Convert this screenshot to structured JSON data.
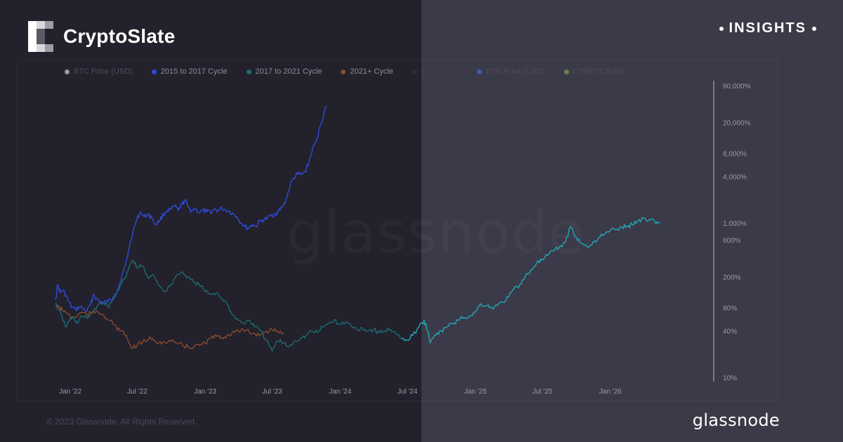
{
  "header": {
    "logo_text": "CryptoSlate",
    "logo_icon": "cryptoslate-pixel-logo-icon",
    "insights_label": "INSIGHTS"
  },
  "legend": {
    "items": [
      {
        "label": "BTC Price (USD)",
        "color": "#ffffff",
        "faded": true
      },
      {
        "label": "2015 to 2017 Cycle",
        "color": "#2f4bd9",
        "faded": false
      },
      {
        "label": "2017 to 2021 Cycle",
        "color": "#1d6b73",
        "faded": false
      },
      {
        "label": "2021+ Cycle",
        "color": "#8a4b2e",
        "faded": false
      },
      {
        "label": "–",
        "color": "#3b3a48",
        "faded": true
      },
      {
        "label": "–",
        "color": "#3b3a48",
        "faded": true
      },
      {
        "label": "BTC Price (USD)",
        "color": "#3b82f6",
        "faded": true
      },
      {
        "label": "LTH/BTC Ratio",
        "color": "#8bc34a",
        "faded": true
      }
    ]
  },
  "watermark": "glassnode",
  "footer": {
    "copyright": "© 2023 Glassnode. All Rights Reserved.",
    "brand": "glassnode"
  },
  "chart_data": {
    "type": "line",
    "y_scale": "log",
    "ylim": [
      10,
      60000
    ],
    "xlim": [
      "2021-11-20",
      "2026-09-30"
    ],
    "x_ticks": [
      {
        "label": "Jan '22",
        "date": "2022-01-01"
      },
      {
        "label": "Jul '22",
        "date": "2022-07-01"
      },
      {
        "label": "Jan '23",
        "date": "2023-01-01"
      },
      {
        "label": "Jul '23",
        "date": "2023-07-01"
      },
      {
        "label": "Jan '24",
        "date": "2024-01-01"
      },
      {
        "label": "Jul '24",
        "date": "2024-07-01"
      },
      {
        "label": "Jan '25",
        "date": "2025-01-01"
      },
      {
        "label": "Jul '25",
        "date": "2025-07-01"
      },
      {
        "label": "Jan '26",
        "date": "2026-01-01"
      }
    ],
    "y_ticks": [
      {
        "label": "60,000%",
        "value": 60000
      },
      {
        "label": "20,000%",
        "value": 20000
      },
      {
        "label": "8,000%",
        "value": 8000
      },
      {
        "label": "4,000%",
        "value": 4000
      },
      {
        "label": "1,000%",
        "value": 1000
      },
      {
        "label": "600%",
        "value": 600
      },
      {
        "label": "200%",
        "value": 200
      },
      {
        "label": "80%",
        "value": 80
      },
      {
        "label": "40%",
        "value": 40
      },
      {
        "label": "10%",
        "value": 10
      }
    ],
    "series": [
      {
        "name": "2015 to 2017 Cycle",
        "color": "#2f4bd9",
        "points": [
          [
            "2021-11-22",
            100
          ],
          [
            "2021-11-28",
            160
          ],
          [
            "2021-12-05",
            125
          ],
          [
            "2021-12-12",
            135
          ],
          [
            "2021-12-20",
            115
          ],
          [
            "2021-12-28",
            95
          ],
          [
            "2022-01-05",
            80
          ],
          [
            "2022-01-15",
            75
          ],
          [
            "2022-01-25",
            82
          ],
          [
            "2022-02-05",
            78
          ],
          [
            "2022-02-15",
            72
          ],
          [
            "2022-02-25",
            88
          ],
          [
            "2022-03-05",
            120
          ],
          [
            "2022-03-12",
            105
          ],
          [
            "2022-03-20",
            98
          ],
          [
            "2022-03-30",
            92
          ],
          [
            "2022-04-10",
            96
          ],
          [
            "2022-04-20",
            100
          ],
          [
            "2022-04-30",
            110
          ],
          [
            "2022-05-10",
            140
          ],
          [
            "2022-05-20",
            200
          ],
          [
            "2022-05-30",
            280
          ],
          [
            "2022-06-10",
            500
          ],
          [
            "2022-06-20",
            800
          ],
          [
            "2022-06-30",
            1100
          ],
          [
            "2022-07-10",
            1400
          ],
          [
            "2022-07-20",
            1200
          ],
          [
            "2022-07-30",
            1300
          ],
          [
            "2022-08-10",
            1150
          ],
          [
            "2022-08-20",
            950
          ],
          [
            "2022-09-01",
            1100
          ],
          [
            "2022-09-10",
            1300
          ],
          [
            "2022-09-20",
            1450
          ],
          [
            "2022-10-01",
            1500
          ],
          [
            "2022-10-10",
            1650
          ],
          [
            "2022-10-20",
            1450
          ],
          [
            "2022-10-30",
            1750
          ],
          [
            "2022-11-08",
            2000
          ],
          [
            "2022-11-15",
            1600
          ],
          [
            "2022-11-25",
            1450
          ],
          [
            "2022-12-05",
            1550
          ],
          [
            "2022-12-15",
            1350
          ],
          [
            "2022-12-25",
            1450
          ],
          [
            "2023-01-05",
            1400
          ],
          [
            "2023-01-15",
            1380
          ],
          [
            "2023-01-25",
            1500
          ],
          [
            "2023-02-05",
            1450
          ],
          [
            "2023-02-15",
            1550
          ],
          [
            "2023-02-25",
            1480
          ],
          [
            "2023-03-08",
            1400
          ],
          [
            "2023-03-18",
            1300
          ],
          [
            "2023-03-28",
            1200
          ],
          [
            "2023-04-08",
            1000
          ],
          [
            "2023-04-18",
            900
          ],
          [
            "2023-04-28",
            850
          ],
          [
            "2023-05-08",
            950
          ],
          [
            "2023-05-18",
            900
          ],
          [
            "2023-05-28",
            1050
          ],
          [
            "2023-06-08",
            1100
          ],
          [
            "2023-06-18",
            1150
          ],
          [
            "2023-06-28",
            1250
          ],
          [
            "2023-07-08",
            1300
          ],
          [
            "2023-07-18",
            1400
          ],
          [
            "2023-07-28",
            1600
          ],
          [
            "2023-08-08",
            2000
          ],
          [
            "2023-08-18",
            3000
          ],
          [
            "2023-08-28",
            3800
          ],
          [
            "2023-09-08",
            4300
          ],
          [
            "2023-09-18",
            4200
          ],
          [
            "2023-09-28",
            4600
          ],
          [
            "2023-10-08",
            6000
          ],
          [
            "2023-10-18",
            9000
          ],
          [
            "2023-10-28",
            11000
          ],
          [
            "2023-11-08",
            18000
          ],
          [
            "2023-11-18",
            26000
          ],
          [
            "2023-11-25",
            33000
          ]
        ]
      },
      {
        "name": "2017 to 2021 Cycle",
        "color": "#1d6b73",
        "points": [
          [
            "2021-11-22",
            90
          ],
          [
            "2021-12-01",
            75
          ],
          [
            "2021-12-10",
            60
          ],
          [
            "2021-12-20",
            45
          ],
          [
            "2021-12-30",
            55
          ],
          [
            "2022-01-10",
            60
          ],
          [
            "2022-01-20",
            50
          ],
          [
            "2022-02-01",
            62
          ],
          [
            "2022-02-15",
            58
          ],
          [
            "2022-03-01",
            70
          ],
          [
            "2022-03-15",
            85
          ],
          [
            "2022-04-01",
            95
          ],
          [
            "2022-04-15",
            80
          ],
          [
            "2022-05-01",
            120
          ],
          [
            "2022-05-15",
            150
          ],
          [
            "2022-06-01",
            200
          ],
          [
            "2022-06-10",
            280
          ],
          [
            "2022-06-20",
            330
          ],
          [
            "2022-07-01",
            260
          ],
          [
            "2022-07-15",
            280
          ],
          [
            "2022-08-01",
            190
          ],
          [
            "2022-08-15",
            210
          ],
          [
            "2022-09-01",
            150
          ],
          [
            "2022-09-15",
            130
          ],
          [
            "2022-10-01",
            160
          ],
          [
            "2022-10-15",
            210
          ],
          [
            "2022-11-01",
            230
          ],
          [
            "2022-11-15",
            200
          ],
          [
            "2022-12-01",
            170
          ],
          [
            "2022-12-15",
            160
          ],
          [
            "2023-01-01",
            130
          ],
          [
            "2023-01-15",
            120
          ],
          [
            "2023-02-01",
            125
          ],
          [
            "2023-02-15",
            105
          ],
          [
            "2023-03-01",
            90
          ],
          [
            "2023-03-15",
            65
          ],
          [
            "2023-04-01",
            55
          ],
          [
            "2023-04-15",
            50
          ],
          [
            "2023-05-01",
            55
          ],
          [
            "2023-05-15",
            45
          ],
          [
            "2023-06-01",
            40
          ],
          [
            "2023-06-15",
            30
          ],
          [
            "2023-07-01",
            22
          ],
          [
            "2023-07-15",
            30
          ],
          [
            "2023-08-01",
            28
          ],
          [
            "2023-08-15",
            25
          ],
          [
            "2023-09-01",
            30
          ],
          [
            "2023-09-15",
            32
          ],
          [
            "2023-10-01",
            35
          ],
          [
            "2023-10-15",
            40
          ],
          [
            "2023-11-01",
            38
          ],
          [
            "2023-11-15",
            45
          ],
          [
            "2023-12-01",
            50
          ],
          [
            "2023-12-15",
            55
          ],
          [
            "2024-01-01",
            48
          ],
          [
            "2024-01-15",
            52
          ],
          [
            "2024-02-01",
            46
          ],
          [
            "2024-02-15",
            42
          ],
          [
            "2024-03-01",
            44
          ],
          [
            "2024-03-15",
            40
          ],
          [
            "2024-04-01",
            42
          ],
          [
            "2024-04-15",
            38
          ],
          [
            "2024-05-01",
            40
          ],
          [
            "2024-05-15",
            42
          ],
          [
            "2024-06-01",
            36
          ],
          [
            "2024-06-15",
            32
          ]
        ]
      },
      {
        "name": "2017 to 2021 Cycle (continued)",
        "color": "#22a8b8",
        "points": [
          [
            "2024-06-15",
            32
          ],
          [
            "2024-07-01",
            30
          ],
          [
            "2024-07-15",
            35
          ],
          [
            "2024-08-01",
            45
          ],
          [
            "2024-08-15",
            55
          ],
          [
            "2024-08-25",
            40
          ],
          [
            "2024-09-01",
            28
          ],
          [
            "2024-09-15",
            35
          ],
          [
            "2024-10-01",
            40
          ],
          [
            "2024-10-15",
            45
          ],
          [
            "2024-11-01",
            50
          ],
          [
            "2024-11-15",
            55
          ],
          [
            "2024-12-01",
            60
          ],
          [
            "2024-12-15",
            62
          ],
          [
            "2025-01-01",
            70
          ],
          [
            "2025-01-15",
            90
          ],
          [
            "2025-02-01",
            85
          ],
          [
            "2025-02-15",
            80
          ],
          [
            "2025-03-01",
            85
          ],
          [
            "2025-03-15",
            95
          ],
          [
            "2025-04-01",
            110
          ],
          [
            "2025-04-15",
            140
          ],
          [
            "2025-05-01",
            160
          ],
          [
            "2025-05-15",
            200
          ],
          [
            "2025-06-01",
            250
          ],
          [
            "2025-06-15",
            300
          ],
          [
            "2025-07-01",
            330
          ],
          [
            "2025-07-15",
            380
          ],
          [
            "2025-08-01",
            430
          ],
          [
            "2025-08-15",
            480
          ],
          [
            "2025-09-01",
            560
          ],
          [
            "2025-09-15",
            900
          ],
          [
            "2025-10-01",
            650
          ],
          [
            "2025-10-15",
            550
          ],
          [
            "2025-11-01",
            480
          ],
          [
            "2025-11-15",
            560
          ],
          [
            "2025-12-01",
            650
          ],
          [
            "2025-12-15",
            700
          ],
          [
            "2026-01-01",
            800
          ],
          [
            "2026-01-15",
            820
          ],
          [
            "2026-02-01",
            880
          ],
          [
            "2026-02-15",
            900
          ],
          [
            "2026-03-01",
            950
          ],
          [
            "2026-03-15",
            1050
          ],
          [
            "2026-04-01",
            1150
          ],
          [
            "2026-04-15",
            1100
          ],
          [
            "2026-05-01",
            1050
          ],
          [
            "2026-05-15",
            1000
          ]
        ]
      },
      {
        "name": "2021+ Cycle",
        "color": "#8a4b2e",
        "points": [
          [
            "2021-11-22",
            85
          ],
          [
            "2021-12-01",
            80
          ],
          [
            "2021-12-10",
            75
          ],
          [
            "2021-12-20",
            70
          ],
          [
            "2022-01-01",
            62
          ],
          [
            "2022-01-15",
            60
          ],
          [
            "2022-02-01",
            70
          ],
          [
            "2022-02-15",
            65
          ],
          [
            "2022-03-01",
            68
          ],
          [
            "2022-03-15",
            72
          ],
          [
            "2022-04-01",
            65
          ],
          [
            "2022-04-15",
            55
          ],
          [
            "2022-05-01",
            48
          ],
          [
            "2022-05-15",
            40
          ],
          [
            "2022-06-01",
            35
          ],
          [
            "2022-06-15",
            24
          ],
          [
            "2022-07-01",
            26
          ],
          [
            "2022-07-15",
            28
          ],
          [
            "2022-08-01",
            32
          ],
          [
            "2022-08-15",
            30
          ],
          [
            "2022-09-01",
            29
          ],
          [
            "2022-09-15",
            28
          ],
          [
            "2022-10-01",
            29
          ],
          [
            "2022-10-15",
            28
          ],
          [
            "2022-11-01",
            26
          ],
          [
            "2022-11-15",
            25
          ],
          [
            "2022-12-01",
            25
          ],
          [
            "2022-12-15",
            26
          ],
          [
            "2023-01-01",
            28
          ],
          [
            "2023-01-15",
            32
          ],
          [
            "2023-02-01",
            34
          ],
          [
            "2023-02-15",
            33
          ],
          [
            "2023-03-01",
            35
          ],
          [
            "2023-03-15",
            38
          ],
          [
            "2023-04-01",
            40
          ],
          [
            "2023-04-15",
            40
          ],
          [
            "2023-05-01",
            38
          ],
          [
            "2023-05-15",
            37
          ],
          [
            "2023-06-01",
            36
          ],
          [
            "2023-06-15",
            40
          ],
          [
            "2023-07-01",
            41
          ],
          [
            "2023-07-15",
            40
          ],
          [
            "2023-08-01",
            38
          ]
        ]
      }
    ]
  }
}
